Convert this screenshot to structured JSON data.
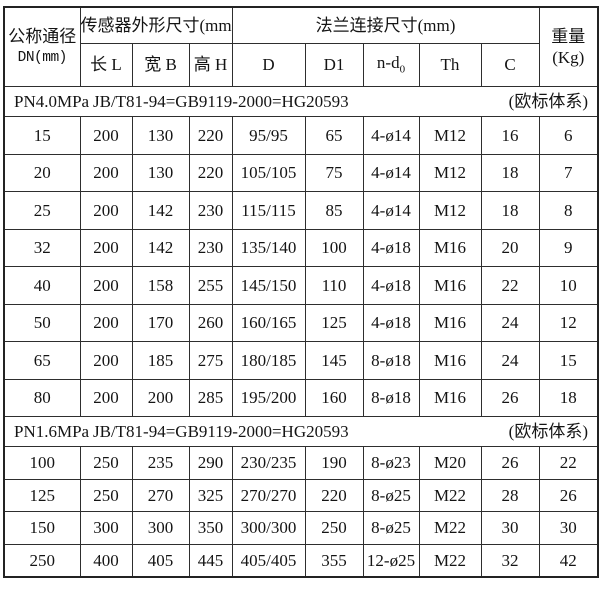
{
  "table": {
    "header": {
      "col_dn_line1": "公称通径",
      "col_dn_line2": "DN(mm)",
      "group_sensor": "传感器外形尺寸(mm)",
      "group_flange": "法兰连接尺寸(mm)",
      "col_weight_line1": "重量",
      "col_weight_line2": "(Kg)",
      "sub_cols": [
        "长 L",
        "宽 B",
        "高 H",
        "D",
        "D1",
        "n-d",
        "Th",
        "C"
      ],
      "nd_subscript": "0"
    },
    "sections": [
      {
        "pressure": "PN4.0MPa",
        "standard": "JB/T81-94=GB9119-2000=HG20593",
        "note": "(欧标体系)",
        "rows": [
          [
            "15",
            "200",
            "130",
            "220",
            "95/95",
            "65",
            "4-ø14",
            "M12",
            "16",
            "6"
          ],
          [
            "20",
            "200",
            "130",
            "220",
            "105/105",
            "75",
            "4-ø14",
            "M12",
            "18",
            "7"
          ],
          [
            "25",
            "200",
            "142",
            "230",
            "115/115",
            "85",
            "4-ø14",
            "M12",
            "18",
            "8"
          ],
          [
            "32",
            "200",
            "142",
            "230",
            "135/140",
            "100",
            "4-ø18",
            "M16",
            "20",
            "9"
          ],
          [
            "40",
            "200",
            "158",
            "255",
            "145/150",
            "110",
            "4-ø18",
            "M16",
            "22",
            "10"
          ],
          [
            "50",
            "200",
            "170",
            "260",
            "160/165",
            "125",
            "4-ø18",
            "M16",
            "24",
            "12"
          ],
          [
            "65",
            "200",
            "185",
            "275",
            "180/185",
            "145",
            "8-ø18",
            "M16",
            "24",
            "15"
          ],
          [
            "80",
            "200",
            "200",
            "285",
            "195/200",
            "160",
            "8-ø18",
            "M16",
            "26",
            "18"
          ]
        ]
      },
      {
        "pressure": "PN1.6MPa",
        "standard": "JB/T81-94=GB9119-2000=HG20593",
        "note": "(欧标体系)",
        "rows": [
          [
            "100",
            "250",
            "235",
            "290",
            "230/235",
            "190",
            "8-ø23",
            "M20",
            "26",
            "22"
          ],
          [
            "125",
            "250",
            "270",
            "325",
            "270/270",
            "220",
            "8-ø25",
            "M22",
            "28",
            "26"
          ],
          [
            "150",
            "300",
            "300",
            "350",
            "300/300",
            "250",
            "8-ø25",
            "M22",
            "30",
            "30"
          ],
          [
            "250",
            "400",
            "405",
            "445",
            "405/405",
            "355",
            "12-ø25",
            "M22",
            "32",
            "42"
          ]
        ]
      }
    ]
  }
}
